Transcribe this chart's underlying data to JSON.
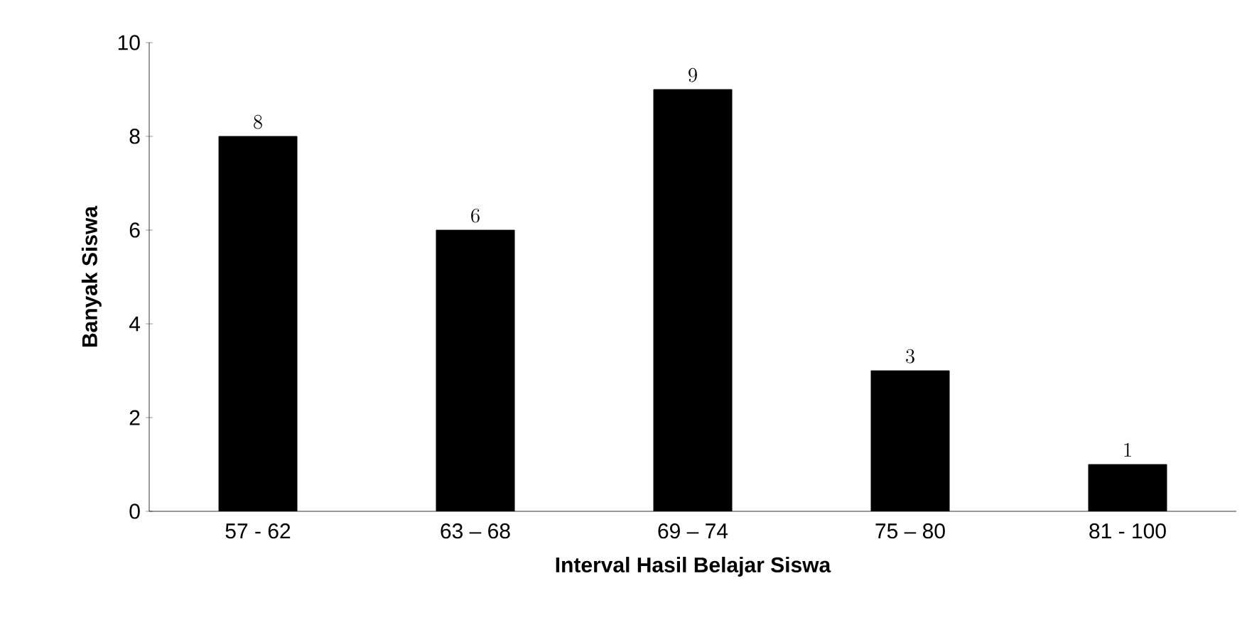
{
  "chart_data": {
    "type": "bar",
    "xlabel": "Interval Hasil Belajar Siswa",
    "ylabel": "Banyak Siswa",
    "categories": [
      "57 - 62",
      "63 – 68",
      "69 – 74",
      "75 – 80",
      "81 - 100"
    ],
    "values": [
      8,
      6,
      9,
      3,
      1
    ],
    "color": "#000000",
    "ylim": [
      0,
      10
    ],
    "yticks": [
      0,
      2,
      4,
      6,
      8,
      10
    ],
    "grid": false,
    "data_labels": true
  }
}
